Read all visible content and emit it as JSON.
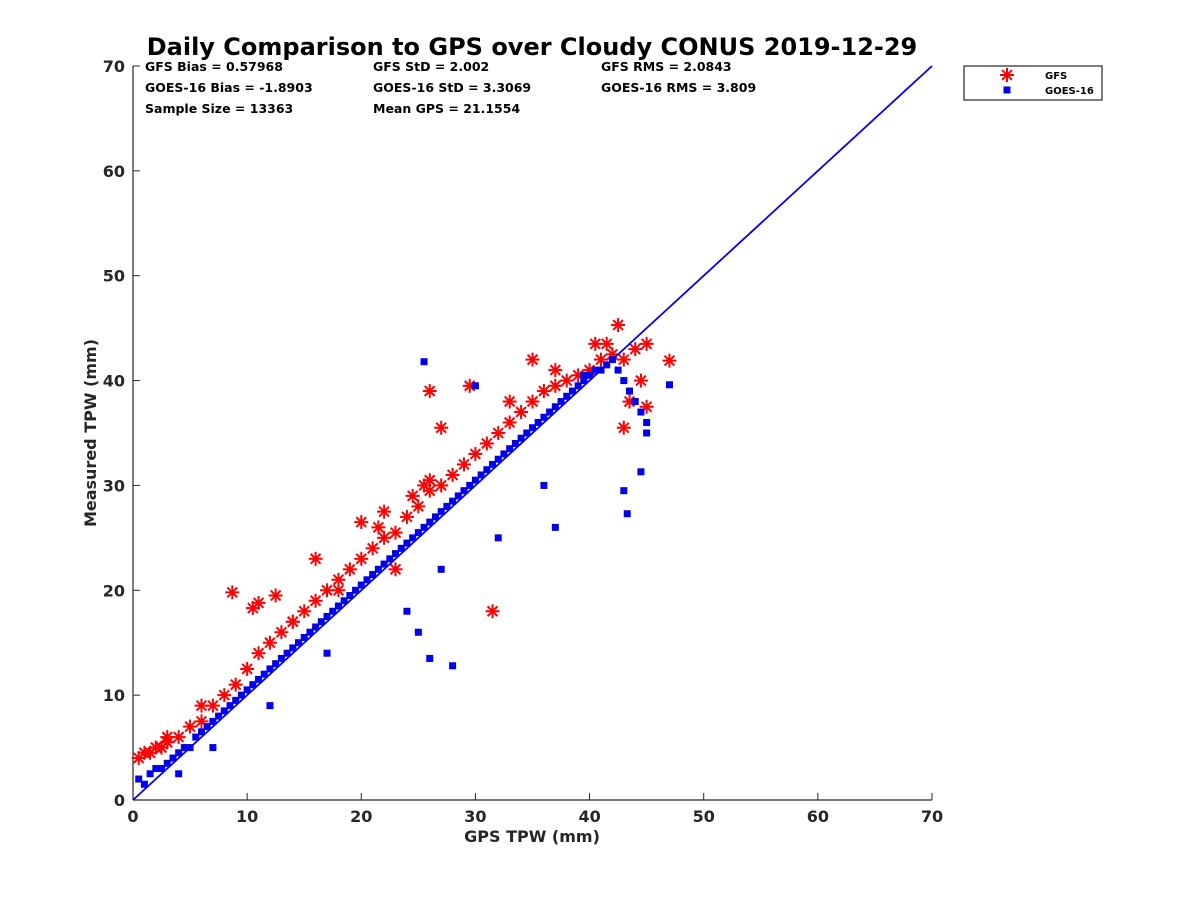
{
  "chart_data": {
    "type": "scatter",
    "title": "Daily Comparison to GPS over Cloudy CONUS 2019-12-29",
    "xlabel": "GPS TPW (mm)",
    "ylabel": "Measured TPW (mm)",
    "xlim": [
      0,
      70
    ],
    "ylim": [
      0,
      70
    ],
    "xticks": [
      "0",
      "10",
      "20",
      "30",
      "40",
      "50",
      "60",
      "70"
    ],
    "yticks": [
      "0",
      "10",
      "20",
      "30",
      "40",
      "50",
      "60",
      "70"
    ],
    "grid": false,
    "legend_position": "outside-top-right",
    "stats": [
      [
        "GFS Bias = 0.57968",
        "GFS StD = 2.002",
        "GFS RMS = 2.0843"
      ],
      [
        "GOES-16 Bias = -1.8903",
        "GOES-16 StD = 3.3069",
        "GOES-16 RMS = 3.809"
      ],
      [
        "Sample Size = 13363",
        "Mean GPS = 21.1554",
        ""
      ]
    ],
    "reference_line": {
      "x": [
        0,
        70
      ],
      "y": [
        0,
        70
      ],
      "color": "#0000ee"
    },
    "series": [
      {
        "name": "GFS",
        "marker": "asterisk",
        "color": "#ff0000",
        "x": [
          0.5,
          1.5,
          2.5,
          3,
          4,
          5,
          6,
          7,
          8,
          9,
          10,
          11,
          12,
          13,
          14,
          15,
          16,
          17,
          18,
          19,
          20,
          21,
          22,
          23,
          24,
          25,
          26,
          27,
          28,
          29,
          30,
          31,
          32,
          33,
          34,
          35,
          36,
          37,
          38,
          39,
          40,
          41,
          42,
          43,
          44,
          45,
          8.7,
          10.5,
          11,
          12.5,
          16,
          20,
          21.5,
          22,
          24.5,
          25.5,
          26,
          27,
          29.5,
          31.5,
          33,
          35,
          37,
          40.5,
          41.5,
          42.5,
          43,
          43.5,
          44.5,
          45,
          47,
          26,
          23,
          18,
          14,
          6,
          3,
          2,
          1
        ],
        "y": [
          4,
          4.5,
          5,
          5.5,
          6,
          7,
          7.5,
          9,
          10,
          11,
          12.5,
          14,
          15,
          16,
          17,
          18,
          19,
          20,
          21,
          22,
          23,
          24,
          25,
          25.5,
          27,
          28,
          29.5,
          30,
          31,
          32,
          33,
          34,
          35,
          36,
          37,
          38,
          39,
          39.5,
          40,
          40.5,
          41,
          42,
          42.5,
          42,
          43,
          43.5,
          19.8,
          18.3,
          18.8,
          19.5,
          23,
          26.5,
          26,
          27.5,
          29,
          30,
          39,
          35.5,
          39.5,
          18,
          38,
          42,
          41,
          43.5,
          43.5,
          45.3,
          35.5,
          38,
          40,
          37.5,
          41.9,
          30.5,
          22,
          20,
          17,
          9,
          6,
          5,
          4.5
        ]
      },
      {
        "name": "GOES-16",
        "marker": "square",
        "color": "#0000ee",
        "x": [
          0.5,
          1,
          1.5,
          2,
          2.5,
          3,
          3.5,
          4,
          4.5,
          5,
          5.5,
          6,
          6.5,
          7,
          7.5,
          8,
          8.5,
          9,
          9.5,
          10,
          10.5,
          11,
          11.5,
          12,
          12.5,
          13,
          13.5,
          14,
          14.5,
          15,
          15.5,
          16,
          16.5,
          17,
          17.5,
          18,
          18.5,
          19,
          19.5,
          20,
          20.5,
          21,
          21.5,
          22,
          22.5,
          23,
          23.5,
          24,
          24.5,
          25,
          25.5,
          26,
          26.5,
          27,
          27.5,
          28,
          28.5,
          29,
          29.5,
          30,
          30.5,
          31,
          31.5,
          32,
          32.5,
          33,
          33.5,
          34,
          34.5,
          35,
          35.5,
          36,
          36.5,
          37,
          37.5,
          38,
          38.5,
          39,
          39.5,
          40,
          40.5,
          41,
          41.5,
          42,
          42.5,
          43,
          43.5,
          44,
          44.5,
          45,
          25.5,
          30,
          37,
          39.5,
          43,
          43.3,
          44.5,
          45,
          47,
          28,
          26,
          25,
          24,
          27,
          32,
          36,
          17,
          12,
          7,
          4
        ],
        "y": [
          2,
          1.5,
          2.5,
          3,
          3,
          3.5,
          4,
          4.5,
          5,
          5,
          6,
          6.5,
          7,
          7.5,
          8,
          8.5,
          9,
          9.5,
          10,
          10.5,
          11,
          11.5,
          12,
          12.5,
          13,
          13.5,
          14,
          14.5,
          15,
          15.5,
          16,
          16.5,
          17,
          17.5,
          18,
          18.5,
          19,
          19.5,
          20,
          20.5,
          21,
          21.5,
          22,
          22.5,
          23,
          23.5,
          24,
          24.5,
          25,
          25.5,
          26,
          26.5,
          27,
          27.5,
          28,
          28.5,
          29,
          29.5,
          30,
          30.5,
          31,
          31.5,
          32,
          32.5,
          33,
          33.5,
          34,
          34.5,
          35,
          35.5,
          36,
          36.5,
          37,
          37.5,
          38,
          38.5,
          39,
          39.5,
          40,
          40.5,
          41,
          41,
          41.5,
          42,
          41,
          40,
          39,
          38,
          37,
          36,
          41.8,
          39.5,
          26,
          40.5,
          29.5,
          27.3,
          31.3,
          35,
          39.6,
          12.8,
          13.5,
          16,
          18,
          22,
          25,
          30,
          14,
          9,
          5,
          2.5
        ]
      }
    ]
  }
}
